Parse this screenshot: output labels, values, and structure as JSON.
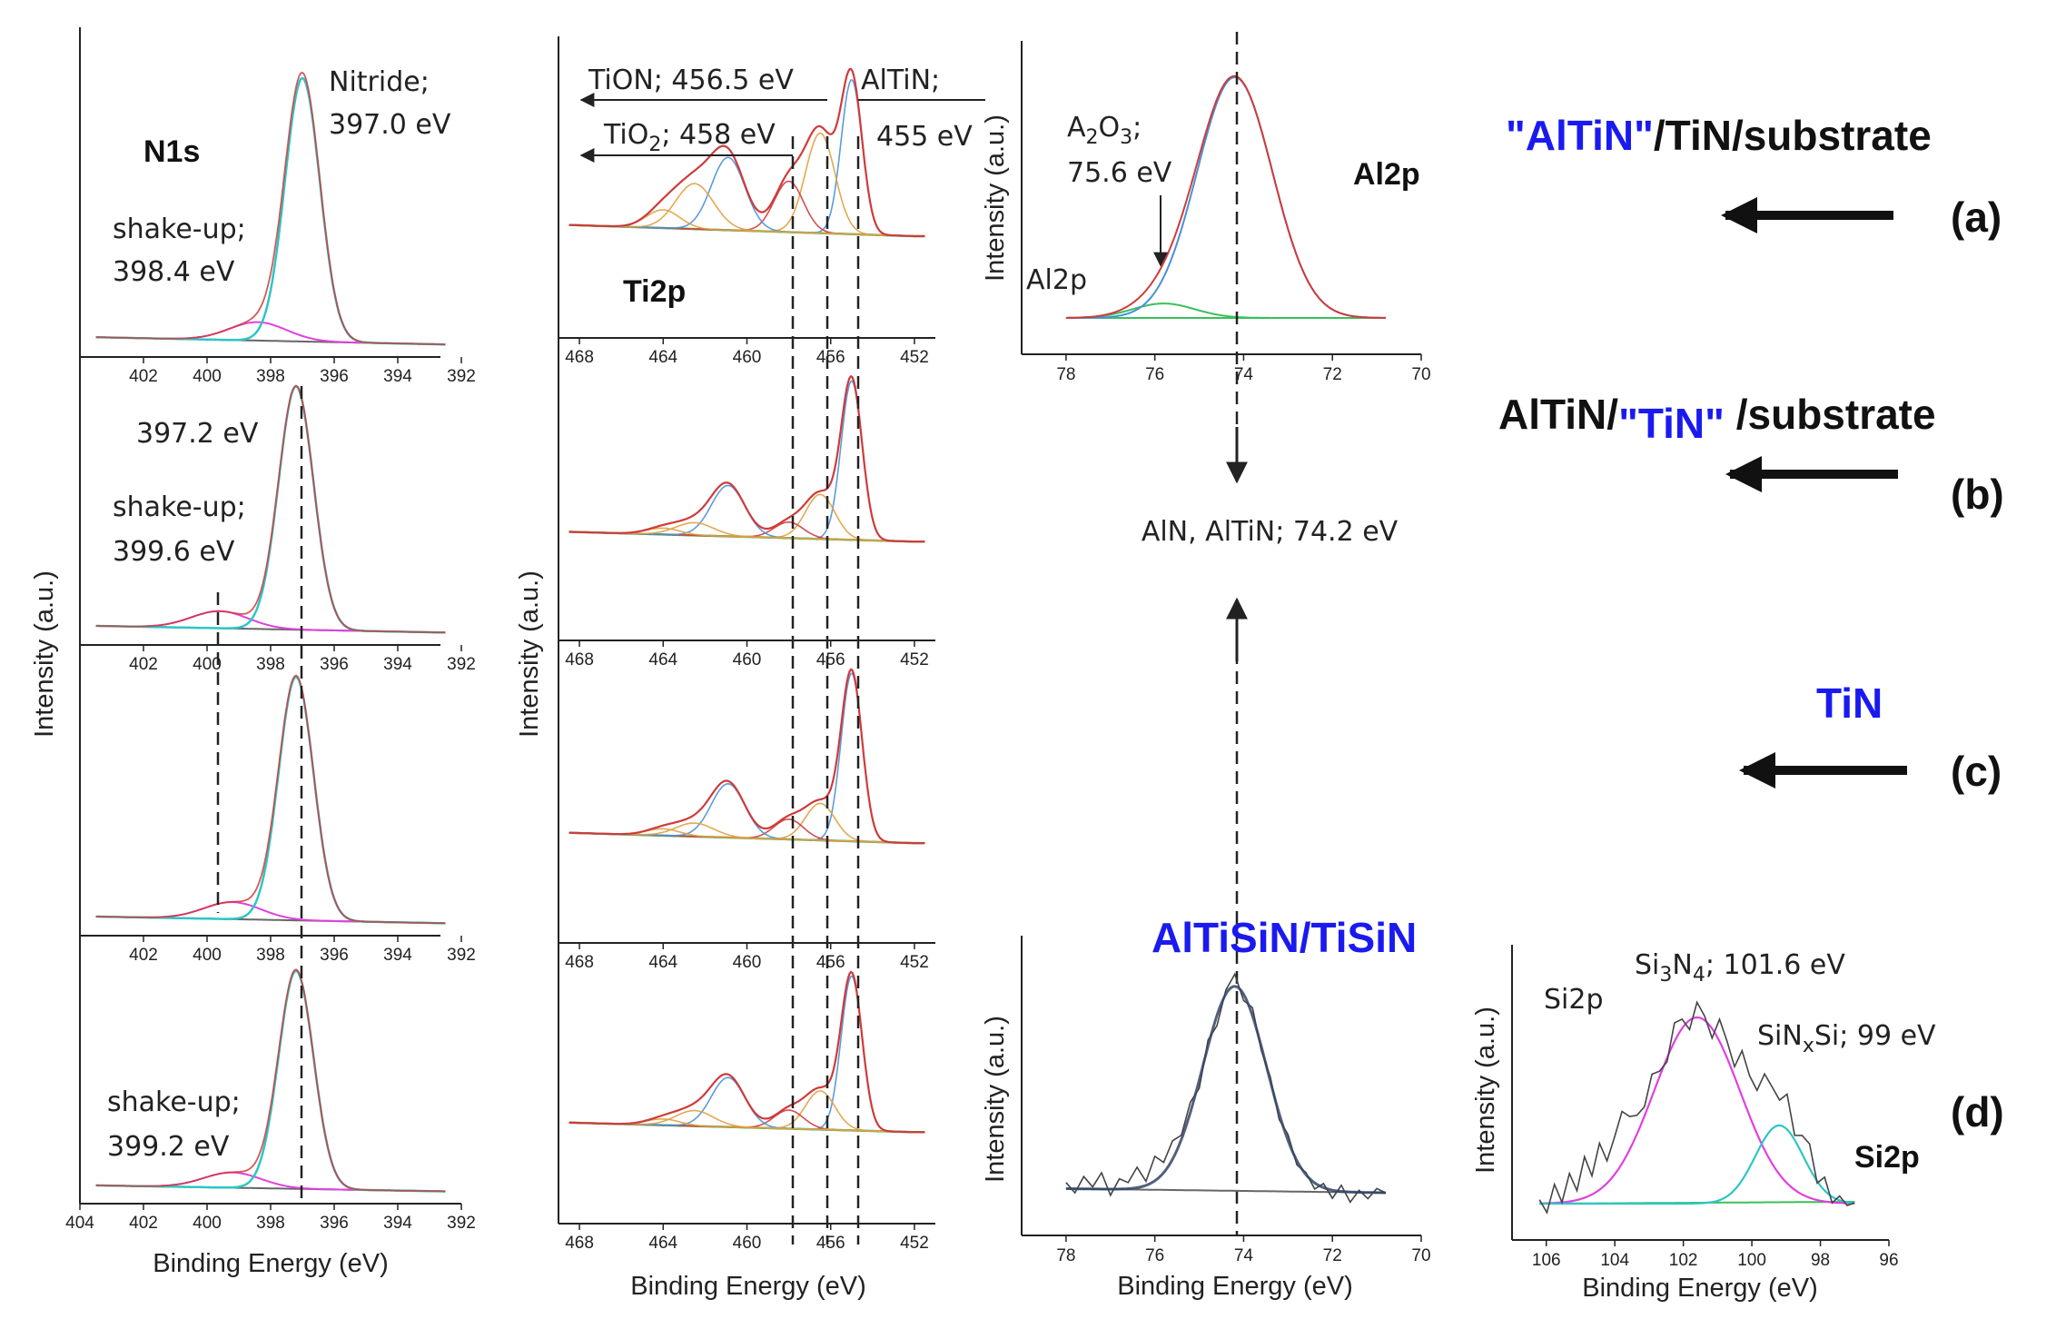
{
  "colors": {
    "total": "#cf3b3b",
    "background": "#666666",
    "comp_blue": "#4a90d9",
    "comp_orange": "#e0a040",
    "comp_cyan": "#2ec5c5",
    "comp_magenta": "#e040e0",
    "comp_green": "#3bbf5a",
    "comp_dark": "#334466",
    "label_blue": "#1a1af0",
    "black": "#111111"
  },
  "chart_data": [
    {
      "id": "n1s",
      "type": "line",
      "title": "N1s",
      "xlabel": "Binding Energy (eV)",
      "ylabel": "Intensity (a.u.)",
      "xlim": [
        404,
        392
      ],
      "xticks_top": [
        402,
        400,
        398,
        396,
        394,
        392
      ],
      "xticks_bottom": [
        404,
        402,
        400,
        398,
        396,
        394,
        392
      ],
      "panels": [
        {
          "name": "a",
          "main_peak_eV": 397.0,
          "shake_up_eV": 398.4,
          "annotations": [
            "Nitride;",
            "397.0 eV",
            "shake-up;",
            "398.4 eV"
          ]
        },
        {
          "name": "b",
          "main_peak_eV": 397.2,
          "shake_up_eV": 399.6,
          "annotations": [
            "397.2 eV",
            "shake-up;",
            "399.6 eV"
          ]
        },
        {
          "name": "c",
          "main_peak_eV": 397.2,
          "shake_up_eV": 399.2,
          "annotations": []
        },
        {
          "name": "d",
          "main_peak_eV": 397.2,
          "shake_up_eV": 399.2,
          "annotations": [
            "shake-up;",
            "399.2 eV"
          ]
        }
      ],
      "dashed_lines_eV": [
        399.7,
        397.2
      ]
    },
    {
      "id": "ti2p",
      "type": "line",
      "title": "Ti2p",
      "xlabel": "Binding Energy (eV)",
      "ylabel": "Intensity (a.u.)",
      "xlim": [
        469,
        451
      ],
      "xticks": [
        468,
        464,
        460,
        456,
        452
      ],
      "annotations": [
        "TiON; 456.5 eV",
        "TiO",
        "2",
        "; 458 eV",
        "AlTiN;",
        "455 eV"
      ],
      "components_eV": {
        "AlTiN": 455.0,
        "TiON": 456.5,
        "TiO2": 458.0
      },
      "dashed_lines_eV": [
        458.0,
        456.5,
        455.0
      ]
    },
    {
      "id": "al2p_a",
      "type": "line",
      "title": "Al2p",
      "xlabel": "",
      "ylabel": "Intensity (a.u.)",
      "xlim": [
        79,
        70
      ],
      "xticks": [
        78,
        76,
        74,
        72,
        70
      ],
      "annotations": [
        "A",
        "2",
        "O",
        "3",
        ";",
        "75.6 eV",
        "Al2p",
        "AlN, AlTiN; 74.2 eV"
      ],
      "peaks_eV": {
        "AlN_AlTiN": 74.2,
        "Al2O3": 75.6
      }
    },
    {
      "id": "al2p_d",
      "type": "line",
      "title": "",
      "xlabel": "Binding Energy (eV)",
      "ylabel": "Intensity (a.u.)",
      "xlim": [
        79,
        70
      ],
      "xticks": [
        78,
        76,
        74,
        72,
        70
      ],
      "peaks_eV": {
        "AlN": 74.2
      }
    },
    {
      "id": "si2p",
      "type": "line",
      "title": "Si2p",
      "xlabel": "Binding Energy (eV)",
      "ylabel": "Intensity (a.u.)",
      "xlim": [
        107,
        96
      ],
      "xticks": [
        106,
        104,
        102,
        100,
        98,
        96
      ],
      "annotations": [
        "Si",
        "3",
        "N",
        "4",
        "; 101.6 eV",
        "SiN",
        "x",
        "Si; 99 eV",
        "Si2p"
      ],
      "peaks_eV": {
        "Si3N4": 101.6,
        "SiNxSi": 99.0
      }
    }
  ],
  "labels": {
    "a_part1": "\"AlTiN\"",
    "a_part2": "/TiN/substrate",
    "a_letter": "(a)",
    "b_part1": "AlTiN/",
    "b_part2": "\"TiN\"",
    "b_part3": " /substrate",
    "b_letter": "(b)",
    "c_part1": "TiN",
    "c_letter": "(c)",
    "d_part1": "AlTiSiN/TiSiN",
    "d_letter": "(d)"
  }
}
